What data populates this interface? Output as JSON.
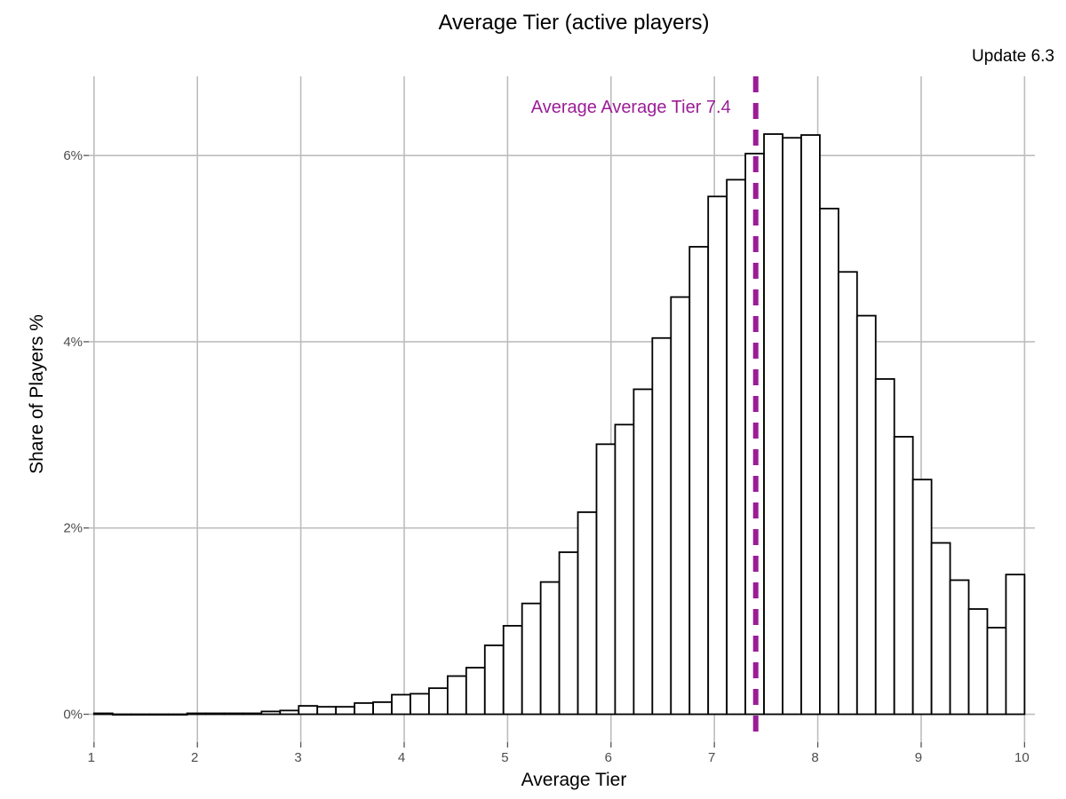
{
  "chart_data": {
    "type": "bar",
    "title": "Average Tier (active players)",
    "subtitle": "Update 6.3",
    "xlabel": "Average Tier",
    "ylabel": "Share of Players %",
    "xlim": [
      0.95,
      10.1
    ],
    "ylim": [
      -0.3,
      6.85
    ],
    "x_ticks": [
      1,
      2,
      3,
      4,
      5,
      6,
      7,
      8,
      9,
      10
    ],
    "x_tick_labels": [
      "1",
      "2",
      "3",
      "4",
      "5",
      "6",
      "7",
      "8",
      "9",
      "10"
    ],
    "y_ticks": [
      0,
      2,
      4,
      6
    ],
    "y_tick_labels": [
      "0%",
      "2%",
      "4%",
      "6%"
    ],
    "grid": true,
    "bin_width": 0.18,
    "bin_start": 1.0,
    "values": [
      0.01,
      0.0,
      0.0,
      0.0,
      0.0,
      0.01,
      0.01,
      0.01,
      0.01,
      0.03,
      0.04,
      0.09,
      0.08,
      0.08,
      0.12,
      0.13,
      0.21,
      0.22,
      0.28,
      0.41,
      0.5,
      0.74,
      0.95,
      1.19,
      1.42,
      1.74,
      2.17,
      2.9,
      3.11,
      3.49,
      4.04,
      4.48,
      5.02,
      5.56,
      5.74,
      6.02,
      6.23,
      6.19,
      6.22,
      5.43,
      4.75,
      4.28,
      3.6,
      2.98,
      2.52,
      1.84,
      1.44,
      1.13,
      0.93,
      1.5
    ],
    "annotations": [
      {
        "type": "vline",
        "x": 7.4,
        "color": "#9b1d96",
        "style": "dashed",
        "label": "Average Average Tier 7.4"
      }
    ]
  }
}
